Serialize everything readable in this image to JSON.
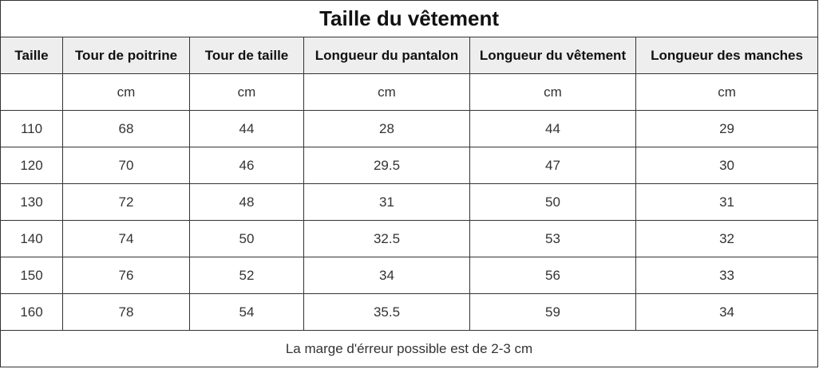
{
  "title": "Taille du vêtement",
  "columns": [
    "Taille",
    "Tour de poitrine",
    "Tour de taille",
    "Longueur du pantalon",
    "Longueur du vêtement",
    "Longueur des manches"
  ],
  "units": [
    "",
    "cm",
    "cm",
    "cm",
    "cm",
    "cm"
  ],
  "rows": [
    [
      "110",
      "68",
      "44",
      "28",
      "44",
      "29"
    ],
    [
      "120",
      "70",
      "46",
      "29.5",
      "47",
      "30"
    ],
    [
      "130",
      "72",
      "48",
      "31",
      "50",
      "31"
    ],
    [
      "140",
      "74",
      "50",
      "32.5",
      "53",
      "32"
    ],
    [
      "150",
      "76",
      "52",
      "34",
      "56",
      "33"
    ],
    [
      "160",
      "78",
      "54",
      "35.5",
      "59",
      "34"
    ]
  ],
  "note": "La marge d'érreur possible est de 2-3 cm",
  "colors": {
    "header_bg": "#eeeeee",
    "border": "#333333",
    "text": "#333333"
  }
}
